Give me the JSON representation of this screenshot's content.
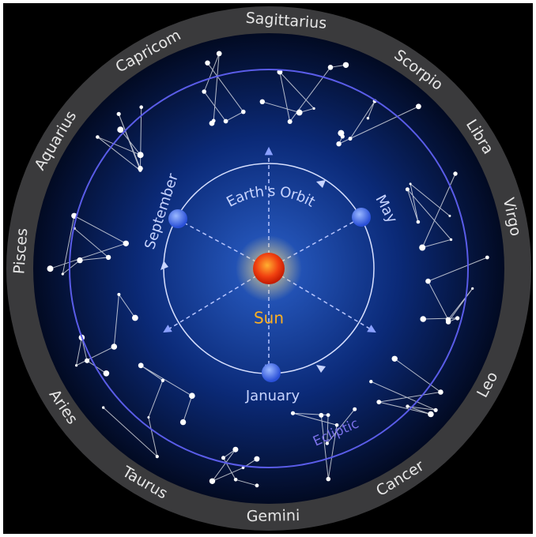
{
  "zodiac": [
    "Sagittarius",
    "Scorpio",
    "Libra",
    "Virgo",
    "Leo",
    "Cancer",
    "Gemini",
    "Taurus",
    "Aries",
    "Pisces",
    "Aquarius",
    "Capricom"
  ],
  "orbit": {
    "title": "Earth's Orbit",
    "sun": "Sun",
    "months": [
      "May",
      "September",
      "January"
    ]
  },
  "ecliptic": "Ecliptic"
}
